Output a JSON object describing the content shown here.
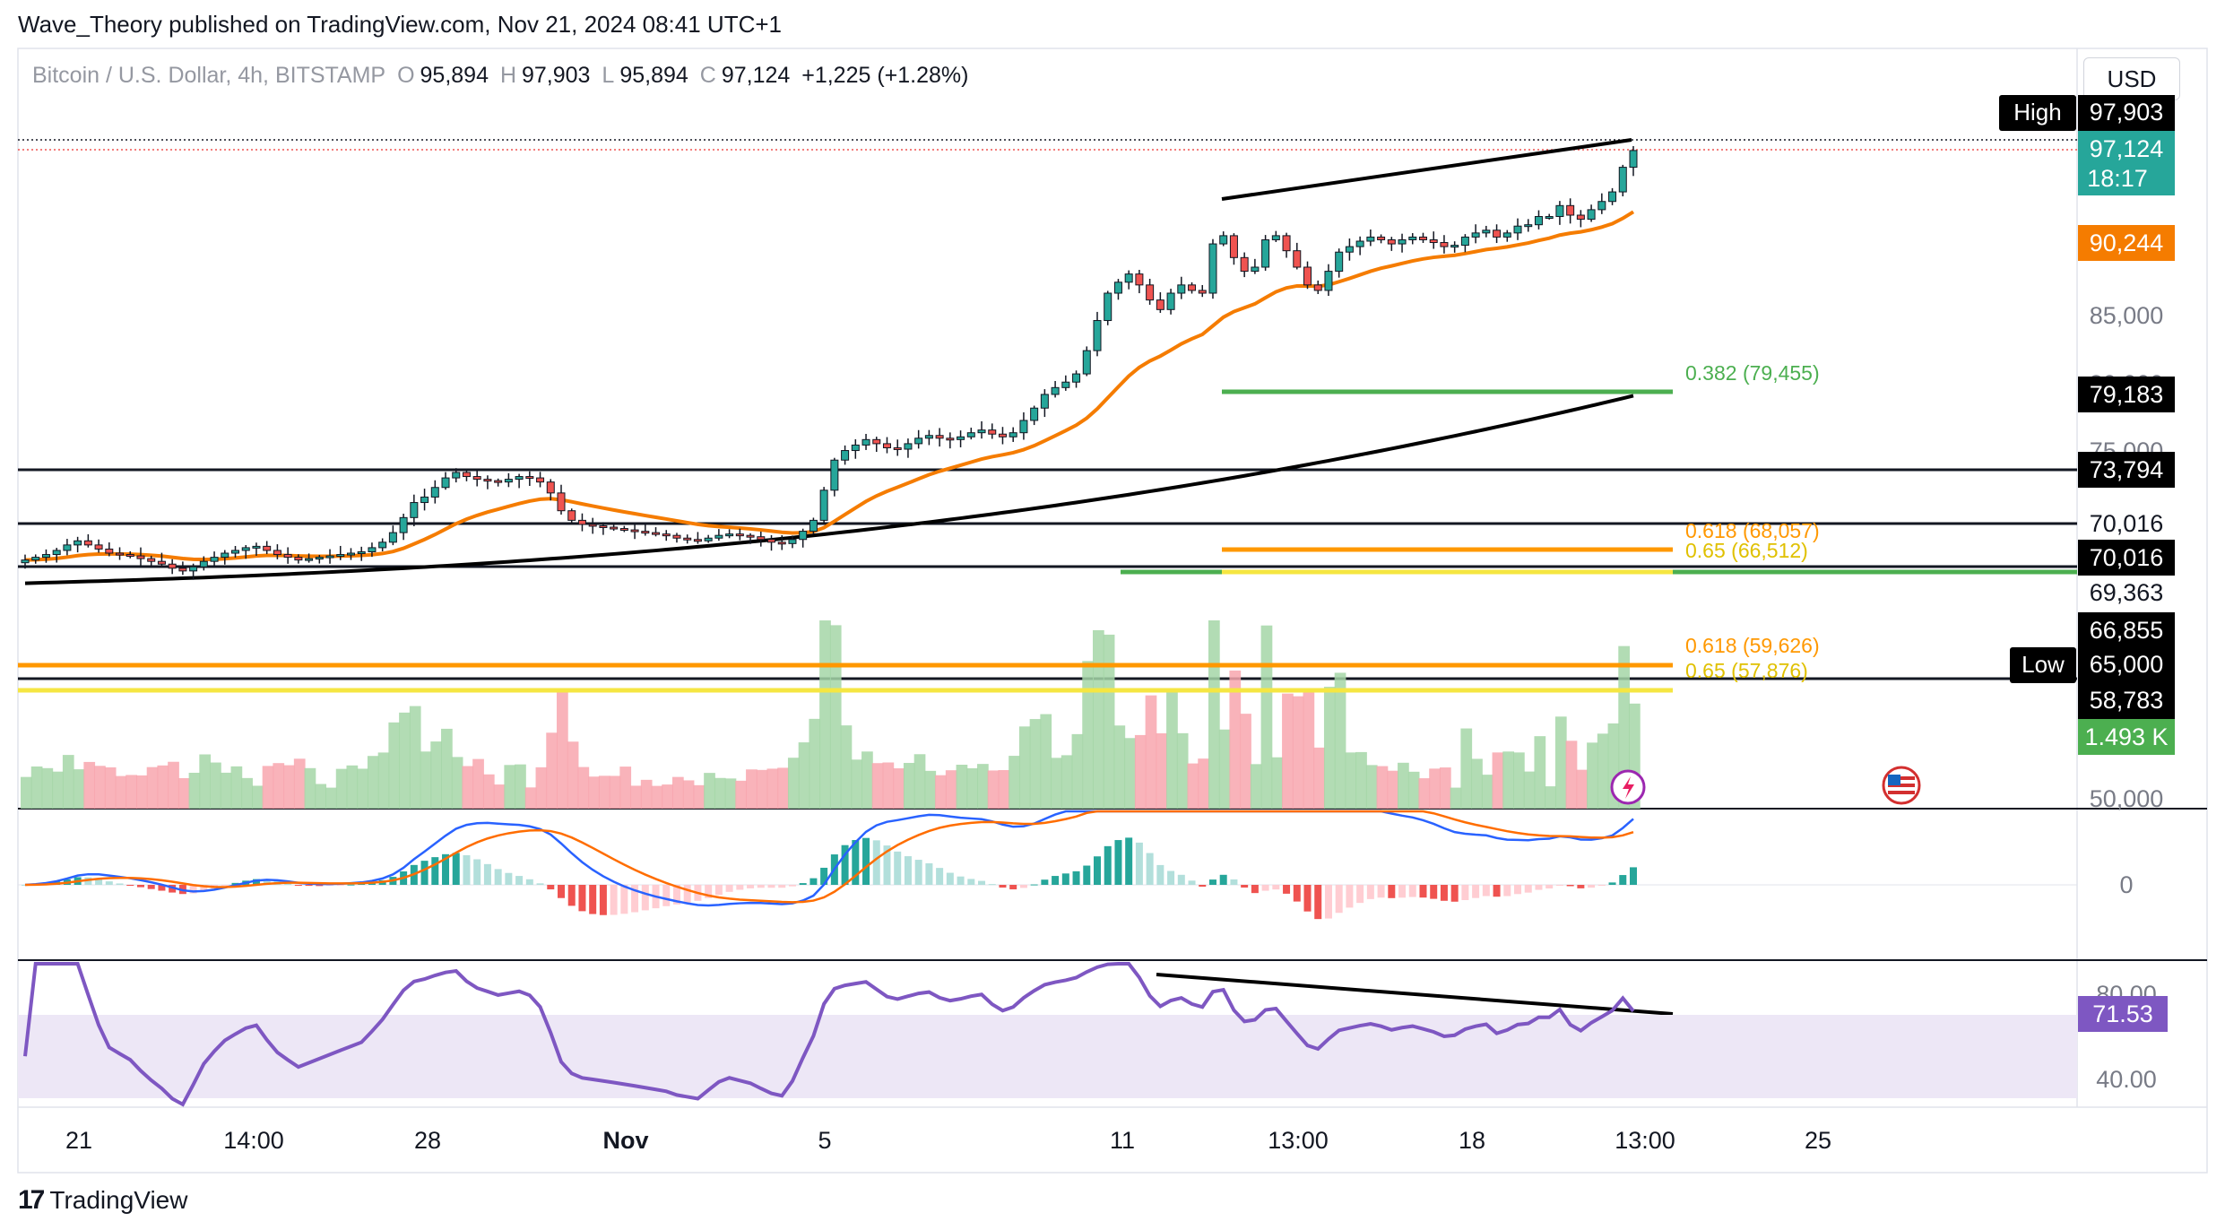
{
  "header": {
    "publisher": "Wave_Theory published on TradingView.com, Nov 21, 2024 08:41 UTC+1"
  },
  "symbol": {
    "name": "Bitcoin / U.S. Dollar, 4h, BITSTAMP",
    "o_label": "O",
    "o_value": "95,894",
    "h_label": "H",
    "h_value": "97,903",
    "l_label": "L",
    "l_value": "95,894",
    "c_label": "C",
    "c_value": "97,124",
    "change": "+1,225 (+1.28%)"
  },
  "currency_button": "USD",
  "price_axis": {
    "high_tag": "High",
    "high_value": "97,903",
    "last_price": "97,124",
    "countdown": "18:17",
    "ema_value": "90,244",
    "ticks": [
      "85,000",
      "80,000",
      "75,000",
      "70,016",
      "69,363",
      "50,000"
    ],
    "level_79183": "79,183",
    "level_73794": "73,794",
    "level_70016": "70,016",
    "level_66855": "66,855",
    "low_tag": "Low",
    "low_value": "65,000",
    "level_58783": "58,783",
    "volume_value": "1.493 K"
  },
  "fib_labels": {
    "f0382": "0.382 (79,455)",
    "f0618a": "0.618 (68,057)",
    "f065a": "0.65 (66,512)",
    "f0618b": "0.618 (59,626)",
    "f065b": "0.65 (57,876)"
  },
  "macd_axis": {
    "zero": "0"
  },
  "rsi_axis": {
    "level80": "80.00",
    "level40": "40.00",
    "value": "71.53"
  },
  "time_axis": [
    "21",
    "14:00",
    "28",
    "Nov",
    "5",
    "11",
    "13:00",
    "18",
    "13:00",
    "25"
  ],
  "footer": {
    "brand": "TradingView"
  },
  "colors": {
    "up": "#26a69a",
    "down": "#ef5350",
    "ema_short": "#f57c00",
    "ema_long": "#000000",
    "fib_green": "#4caf50",
    "fib_orange": "#ff9800",
    "fib_yellow": "#f5e642",
    "macd": "#2962ff",
    "signal": "#ff6d00",
    "rsi": "#7e57c2",
    "rsi_band": "#ede7f6"
  },
  "chart_data": {
    "type": "candlestick",
    "title": "Bitcoin / U.S. Dollar, 4h, BITSTAMP",
    "ylabel": "USD",
    "ylim": [
      47000,
      102000
    ],
    "closes": [
      67200,
      67400,
      67600,
      67900,
      68300,
      68600,
      68300,
      68000,
      67700,
      67600,
      67500,
      67300,
      67100,
      66900,
      66600,
      66400,
      66700,
      67100,
      67400,
      67700,
      67900,
      68100,
      68200,
      67900,
      67600,
      67400,
      67200,
      67300,
      67400,
      67500,
      67600,
      67700,
      67800,
      68100,
      68500,
      69200,
      70300,
      71400,
      71800,
      72500,
      73200,
      73600,
      73300,
      73100,
      73000,
      72900,
      73100,
      73300,
      73200,
      72900,
      72100,
      70800,
      70100,
      69800,
      69700,
      69600,
      69500,
      69400,
      69300,
      69200,
      69100,
      69000,
      68800,
      68700,
      68600,
      68800,
      69000,
      69100,
      69000,
      68900,
      68700,
      68500,
      68400,
      68700,
      69300,
      70100,
      72300,
      74500,
      75200,
      75600,
      76000,
      75700,
      75400,
      75300,
      75700,
      76100,
      76300,
      76100,
      76000,
      76200,
      76500,
      76700,
      76400,
      76200,
      76500,
      77400,
      78300,
      79300,
      79800,
      80200,
      80800,
      82500,
      84700,
      86700,
      87500,
      88100,
      87300,
      86200,
      85500,
      86700,
      87300,
      86900,
      86700,
      90300,
      90900,
      89300,
      88300,
      88600,
      90600,
      90900,
      89800,
      88600,
      87300,
      86900,
      88300,
      89700,
      90100,
      90500,
      90800,
      90600,
      90300,
      90600,
      90800,
      90600,
      90400,
      90100,
      90200,
      90800,
      91100,
      91300,
      90800,
      91100,
      91600,
      91700,
      92300,
      92300,
      93100,
      92400,
      92100,
      92800,
      93400,
      94100,
      95900,
      97124
    ],
    "ema50_end": 90244,
    "ema200_end": 79183,
    "horizontal_levels": [
      73794,
      70016,
      69363,
      65000
    ],
    "fibonacci": [
      {
        "label": "0.382",
        "value": 79455
      },
      {
        "label": "0.618",
        "value": 68057
      },
      {
        "label": "0.65",
        "value": 66512
      },
      {
        "label": "0.618",
        "value": 59626
      },
      {
        "label": "0.65",
        "value": 57876
      }
    ],
    "high": 97903,
    "last": 97124,
    "low": 65000,
    "volume_last": "1.493 K",
    "rsi_last": 71.53,
    "rsi_levels": [
      80,
      40
    ],
    "x_ticks": [
      "21",
      "14:00",
      "28",
      "Nov",
      "5",
      "11",
      "13:00",
      "18",
      "13:00",
      "25"
    ]
  }
}
